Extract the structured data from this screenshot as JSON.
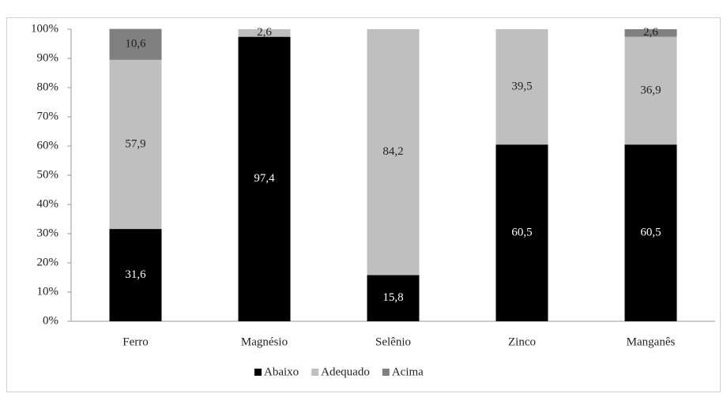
{
  "chart_data": {
    "type": "stacked-bar-100",
    "categories": [
      "Ferro",
      "Magnésio",
      "Selênio",
      "Zinco",
      "Manganês"
    ],
    "series": [
      {
        "name": "Abaixo",
        "color": "#000000",
        "values": [
          31.6,
          97.4,
          15.8,
          60.5,
          60.5
        ],
        "value_labels": [
          "31,6",
          "97,4",
          "15,8",
          "60,5",
          "60,5"
        ]
      },
      {
        "name": "Adequado",
        "color": "#bfbfbf",
        "values": [
          57.9,
          2.6,
          84.2,
          39.5,
          36.9
        ],
        "value_labels": [
          "57,9",
          "2,6",
          "84,2",
          "39,5",
          "36,9"
        ]
      },
      {
        "name": "Acima",
        "color": "#808080",
        "values": [
          10.6,
          0,
          0,
          0,
          2.6
        ],
        "value_labels": [
          "10,6",
          null,
          null,
          null,
          "2,6"
        ]
      }
    ],
    "ylim": [
      0,
      100
    ],
    "yticks": [
      {
        "value": 0,
        "label": "0%"
      },
      {
        "value": 10,
        "label": "10%"
      },
      {
        "value": 20,
        "label": "20%"
      },
      {
        "value": 30,
        "label": "30%"
      },
      {
        "value": 40,
        "label": "40%"
      },
      {
        "value": 50,
        "label": "50%"
      },
      {
        "value": 60,
        "label": "60%"
      },
      {
        "value": 70,
        "label": "70%"
      },
      {
        "value": 80,
        "label": "80%"
      },
      {
        "value": 90,
        "label": "90%"
      },
      {
        "value": 100,
        "label": "100%"
      }
    ],
    "legend": "bottom"
  }
}
